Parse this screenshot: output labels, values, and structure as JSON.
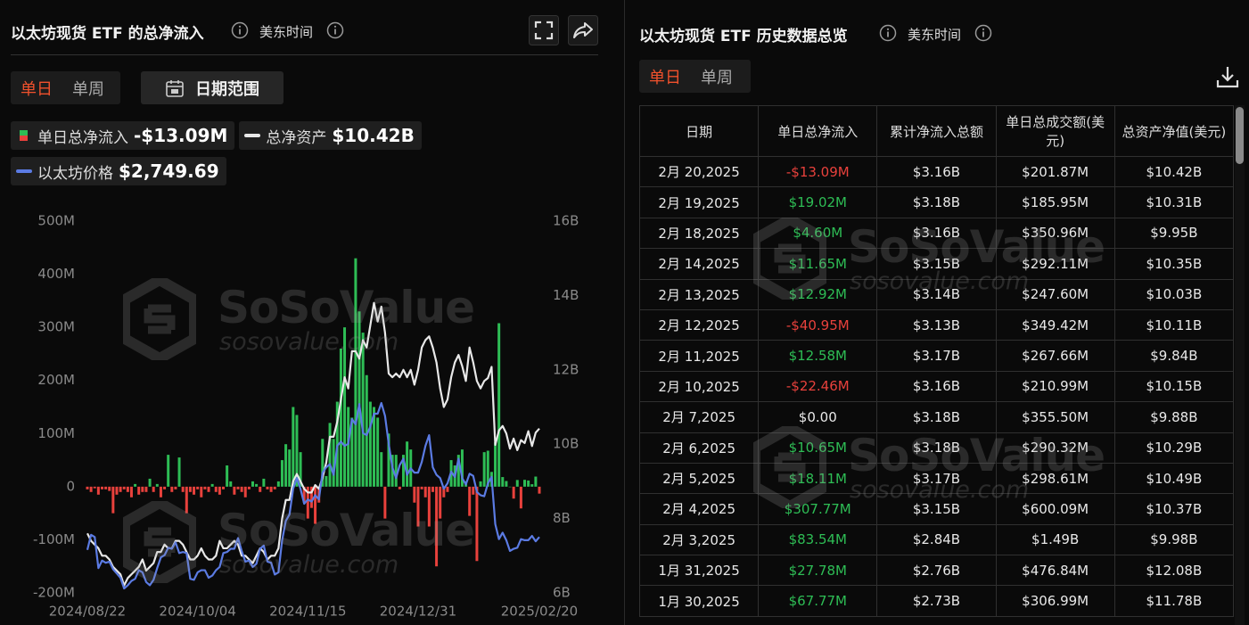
{
  "left_panel": {
    "title": "以太坊现货 ETF 的总净流入",
    "timezone": "美东时间",
    "tabs": [
      "单日",
      "单周"
    ],
    "date_range": "日期范围"
  },
  "chart_data": {
    "type": "combo",
    "categories": [
      "2024/08/22",
      null,
      null,
      null,
      null,
      null,
      null,
      null,
      null,
      null,
      null,
      null,
      null,
      null,
      null,
      null,
      null,
      null,
      null,
      null,
      null,
      null,
      null,
      null,
      null,
      null,
      null,
      null,
      null,
      null,
      "2024/10/04",
      null,
      null,
      null,
      null,
      null,
      null,
      null,
      null,
      null,
      null,
      null,
      null,
      null,
      null,
      null,
      null,
      null,
      null,
      null,
      null,
      null,
      null,
      null,
      null,
      null,
      null,
      null,
      null,
      null,
      "2024/11/15",
      null,
      null,
      null,
      null,
      null,
      null,
      null,
      null,
      null,
      null,
      null,
      null,
      null,
      null,
      null,
      null,
      null,
      null,
      null,
      null,
      null,
      null,
      null,
      null,
      null,
      null,
      null,
      null,
      null,
      "2024/12/31",
      null,
      null,
      null,
      null,
      null,
      null,
      null,
      null,
      null,
      null,
      null,
      null,
      null,
      null,
      null,
      null,
      null,
      null,
      null,
      null,
      null,
      null,
      null,
      null,
      null,
      null,
      null,
      null,
      null,
      null,
      null,
      null,
      "2025/02/20"
    ],
    "ylim": [
      -200,
      500
    ],
    "yticks": [
      {
        "value": -200,
        "label": "-200M"
      },
      {
        "value": -100,
        "label": "-100M"
      },
      0,
      {
        "value": 100,
        "label": "100M"
      },
      {
        "value": 200,
        "label": "200M"
      },
      {
        "value": 300,
        "label": "300M"
      },
      {
        "value": 400,
        "label": "400M"
      },
      {
        "value": 500,
        "label": "500M"
      }
    ],
    "y2lim": [
      6,
      16
    ],
    "y2ticks": [
      {
        "value": 6,
        "label": "6B"
      },
      {
        "value": 8,
        "label": "8B"
      },
      {
        "value": 10,
        "label": "10B"
      },
      {
        "value": 12,
        "label": "12B"
      },
      {
        "value": 14,
        "label": "14B"
      },
      {
        "value": 16,
        "label": "16B"
      }
    ],
    "series": [
      {
        "name": "单日总净流入",
        "type": "bar",
        "axis": "y",
        "color": "#2ebd55",
        "negative_color": "#e8413c",
        "current_label": "-$13.09M",
        "values": [
          -5,
          -10,
          -3,
          -15,
          -5,
          -5,
          -8,
          -50,
          -15,
          -10,
          -5,
          -10,
          -20,
          5,
          -15,
          -10,
          -10,
          15,
          -10,
          5,
          -20,
          -5,
          60,
          -10,
          -5,
          55,
          -10,
          -50,
          -10,
          -15,
          -5,
          -20,
          -5,
          -10,
          5,
          -10,
          -15,
          -5,
          40,
          10,
          -15,
          -5,
          -10,
          -20,
          -5,
          10,
          5,
          -10,
          15,
          -5,
          -10,
          -5,
          10,
          50,
          80,
          70,
          150,
          135,
          65,
          -30,
          -60,
          -40,
          -70,
          -30,
          90,
          20,
          120,
          90,
          160,
          260,
          300,
          150,
          130,
          430,
          330,
          290,
          210,
          160,
          150,
          130,
          65,
          -60,
          100,
          60,
          60,
          -5,
          60,
          85,
          70,
          -30,
          -75,
          -5,
          -20,
          -75,
          -10,
          -150,
          -60,
          -20,
          -10,
          50,
          40,
          60,
          70,
          10,
          -55,
          -15,
          -140,
          10,
          65,
          67.77,
          27.78,
          83.54,
          307.77,
          18.11,
          10.65,
          0,
          -22.46,
          12.58,
          -40.95,
          12.92,
          11.65,
          4.6,
          19.02,
          -13.09
        ]
      },
      {
        "name": "总净资产",
        "type": "line",
        "axis": "y2",
        "color": "#e8e8e8",
        "current_label": "$10.42B",
        "values": [
          7.6,
          7.4,
          7.3,
          7.2,
          7.0,
          7.0,
          6.9,
          6.7,
          6.6,
          6.5,
          6.2,
          6.4,
          6.5,
          6.6,
          6.7,
          6.9,
          6.6,
          6.7,
          6.8,
          7.1,
          7.1,
          7.3,
          7.2,
          7.2,
          7.4,
          7.4,
          7.3,
          7.1,
          6.9,
          6.9,
          7.0,
          7.2,
          7.0,
          6.9,
          6.9,
          7.0,
          7.4,
          7.2,
          7.2,
          7.3,
          7.4,
          7.3,
          7.0,
          7.0,
          6.9,
          6.8,
          7.0,
          7.2,
          7.1,
          6.9,
          7.0,
          7.0,
          7.2,
          8.0,
          8.5,
          8.5,
          9.0,
          9.2,
          9.0,
          8.8,
          8.7,
          8.7,
          8.9,
          8.8,
          9.1,
          9.5,
          10.2,
          10.2,
          10.6,
          11.2,
          11.8,
          11.5,
          12.5,
          12.5,
          12.3,
          12.8,
          12.6,
          13.2,
          13.8,
          13.3,
          13.7,
          13.0,
          11.9,
          11.8,
          11.9,
          11.8,
          12.0,
          11.8,
          12.0,
          11.6,
          12.0,
          12.6,
          12.8,
          12.9,
          12.6,
          12.2,
          11.5,
          11.0,
          11.2,
          11.8,
          12.2,
          12.4,
          12.1,
          11.7,
          12.6,
          12.2,
          11.7,
          11.5,
          11.7,
          11.78,
          12.08,
          9.98,
          10.37,
          10.49,
          10.29,
          9.88,
          10.15,
          9.84,
          10.11,
          10.03,
          10.35,
          9.95,
          10.31,
          10.42
        ]
      },
      {
        "name": "以太坊价格",
        "type": "line",
        "color": "#5b7be3",
        "current_label": "$2,749.69",
        "values": [
          2630,
          2770,
          2750,
          2460,
          2530,
          2510,
          2520,
          2450,
          2410,
          2370,
          2270,
          2300,
          2340,
          2360,
          2440,
          2420,
          2330,
          2300,
          2350,
          2460,
          2560,
          2580,
          2650,
          2640,
          2700,
          2600,
          2610,
          2600,
          2360,
          2350,
          2420,
          2440,
          2440,
          2370,
          2390,
          2440,
          2470,
          2600,
          2610,
          2640,
          2640,
          2740,
          2620,
          2520,
          2530,
          2470,
          2500,
          2640,
          2670,
          2520,
          2510,
          2400,
          2420,
          2720,
          2900,
          2960,
          3200,
          3300,
          3200,
          3060,
          3100,
          3080,
          3140,
          3100,
          3350,
          3400,
          3430,
          3330,
          3600,
          3640,
          3600,
          3620,
          3850,
          3800,
          3990,
          3720,
          3700,
          3780,
          3900,
          3900,
          4000,
          3880,
          3620,
          3400,
          3300,
          3420,
          3480,
          3330,
          3390,
          3350,
          3350,
          3450,
          3600,
          3700,
          3400,
          3330,
          3300,
          3200,
          3250,
          3360,
          3310,
          3480,
          3300,
          3240,
          3340,
          3320,
          3170,
          3140,
          3130,
          3250,
          3310,
          2870,
          2730,
          2790,
          2720,
          2620,
          2640,
          2650,
          2730,
          2720,
          2720,
          2760,
          2710,
          2749.69
        ]
      }
    ]
  },
  "watermark": {
    "brand": "SoSoValue",
    "url": "sosovalue.com"
  },
  "right_panel": {
    "title": "以太坊现货 ETF 历史数据总览",
    "timezone": "美东时间",
    "tabs": [
      "单日",
      "单周"
    ]
  },
  "table": {
    "columns": [
      "日期",
      "单日总净流入",
      "累计净流入总额",
      "单日总成交额(美元)",
      "总资产净值(美元)"
    ],
    "rows": [
      [
        "2月 20,2025",
        "-$13.09M",
        "$3.16B",
        "$201.87M",
        "$10.42B"
      ],
      [
        "2月 19,2025",
        "$19.02M",
        "$3.18B",
        "$185.95M",
        "$10.31B"
      ],
      [
        "2月 18,2025",
        "$4.60M",
        "$3.16B",
        "$350.96M",
        "$9.95B"
      ],
      [
        "2月 14,2025",
        "$11.65M",
        "$3.15B",
        "$292.11M",
        "$10.35B"
      ],
      [
        "2月 13,2025",
        "$12.92M",
        "$3.14B",
        "$247.60M",
        "$10.03B"
      ],
      [
        "2月 12,2025",
        "-$40.95M",
        "$3.13B",
        "$349.42M",
        "$10.11B"
      ],
      [
        "2月 11,2025",
        "$12.58M",
        "$3.17B",
        "$267.66M",
        "$9.84B"
      ],
      [
        "2月 10,2025",
        "-$22.46M",
        "$3.16B",
        "$210.99M",
        "$10.15B"
      ],
      [
        "2月 7,2025",
        "$0.00",
        "$3.18B",
        "$355.50M",
        "$9.88B"
      ],
      [
        "2月 6,2025",
        "$10.65M",
        "$3.18B",
        "$290.32M",
        "$10.29B"
      ],
      [
        "2月 5,2025",
        "$18.11M",
        "$3.17B",
        "$298.61M",
        "$10.49B"
      ],
      [
        "2月 4,2025",
        "$307.77M",
        "$3.15B",
        "$600.09M",
        "$10.37B"
      ],
      [
        "2月 3,2025",
        "$83.54M",
        "$2.84B",
        "$1.49B",
        "$9.98B"
      ],
      [
        "1月 31,2025",
        "$27.78M",
        "$2.76B",
        "$476.84M",
        "$12.08B"
      ],
      [
        "1月 30,2025",
        "$67.77M",
        "$2.73B",
        "$306.99M",
        "$11.78B"
      ]
    ]
  }
}
